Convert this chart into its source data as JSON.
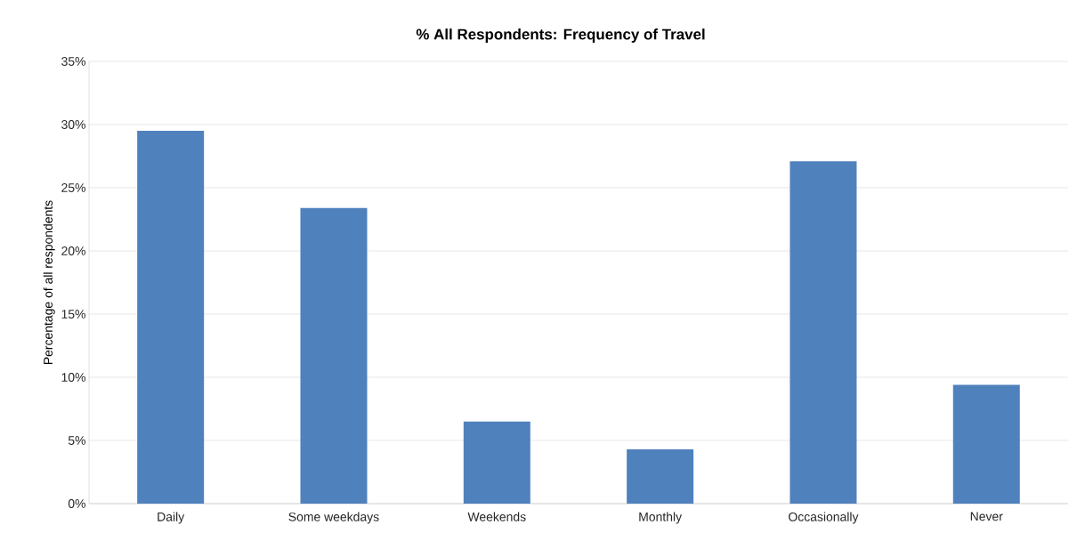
{
  "chart_data": {
    "type": "bar",
    "title": "% All Respondents: Frequency of Travel",
    "ylabel": "Percentage of all respondents",
    "categories": [
      "Daily",
      "Some weekdays",
      "Weekends",
      "Monthly",
      "Occasionally",
      "Never"
    ],
    "values": [
      29.5,
      23.4,
      6.5,
      4.3,
      27.1,
      9.4
    ],
    "color": "#4f81bd",
    "ylim": [
      0,
      35
    ],
    "yticks": [
      {
        "value": 0,
        "label": "0%"
      },
      {
        "value": 5,
        "label": "5%"
      },
      {
        "value": 10,
        "label": "10%"
      },
      {
        "value": 15,
        "label": "15%"
      },
      {
        "value": 20,
        "label": "20%"
      },
      {
        "value": 25,
        "label": "25%"
      },
      {
        "value": 30,
        "label": "30%"
      },
      {
        "value": 35,
        "label": "35%"
      }
    ],
    "grid": "y"
  }
}
